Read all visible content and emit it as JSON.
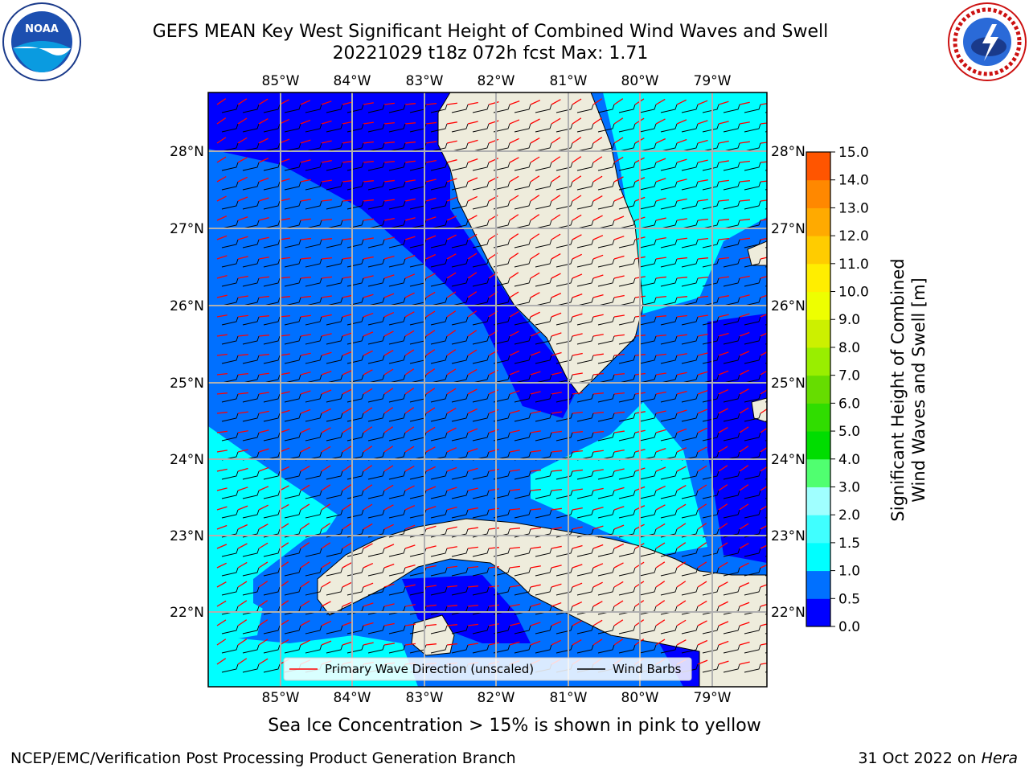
{
  "title": {
    "line1": "GEFS MEAN Key West Significant Height of Combined Wind Waves and Swell",
    "line2": "20221029 t18z 072h fcst   Max: 1.71"
  },
  "logos": {
    "left": {
      "text": "NOAA",
      "icon": "noaa-logo-icon"
    },
    "right": {
      "icon": "nws-logo-icon"
    }
  },
  "map": {
    "lon_ticks": [
      "85°W",
      "84°W",
      "83°W",
      "82°W",
      "81°W",
      "80°W",
      "79°W"
    ],
    "lat_ticks": [
      "28°N",
      "27°N",
      "26°N",
      "25°N",
      "24°N",
      "23°N",
      "22°N"
    ],
    "land_color": "#eeecdc",
    "legend": {
      "wave_label": "Primary Wave Direction (unscaled)",
      "wind_label": "Wind Barbs"
    }
  },
  "colorbar": {
    "label_line1": "Significant Height of Combined",
    "label_line2": "Wind Waves and Swell [m]",
    "ticks": [
      "15.0",
      "14.0",
      "13.0",
      "12.0",
      "11.0",
      "10.0",
      "9.0",
      "8.0",
      "7.0",
      "6.0",
      "5.0",
      "4.0",
      "3.0",
      "2.0",
      "1.5",
      "1.0",
      "0.5",
      "0.0"
    ],
    "colors": [
      "#0000ff",
      "#0070ff",
      "#00ffff",
      "#40ffff",
      "#a0ffff",
      "#50ff70",
      "#00dd00",
      "#30dd00",
      "#66dd00",
      "#99ee00",
      "#ccf000",
      "#eeff00",
      "#ffee00",
      "#ffcc00",
      "#ffaa00",
      "#ff8800",
      "#ff5500",
      "#ff2a00",
      "#ff0000"
    ]
  },
  "caption": "Sea Ice Concentration > 15% is shown in pink to yellow",
  "footer": {
    "left": "NCEP/EMC/Verification Post Processing Product Generation Branch",
    "right_prefix": "31 Oct 2022 on ",
    "right_host": "Hera"
  }
}
